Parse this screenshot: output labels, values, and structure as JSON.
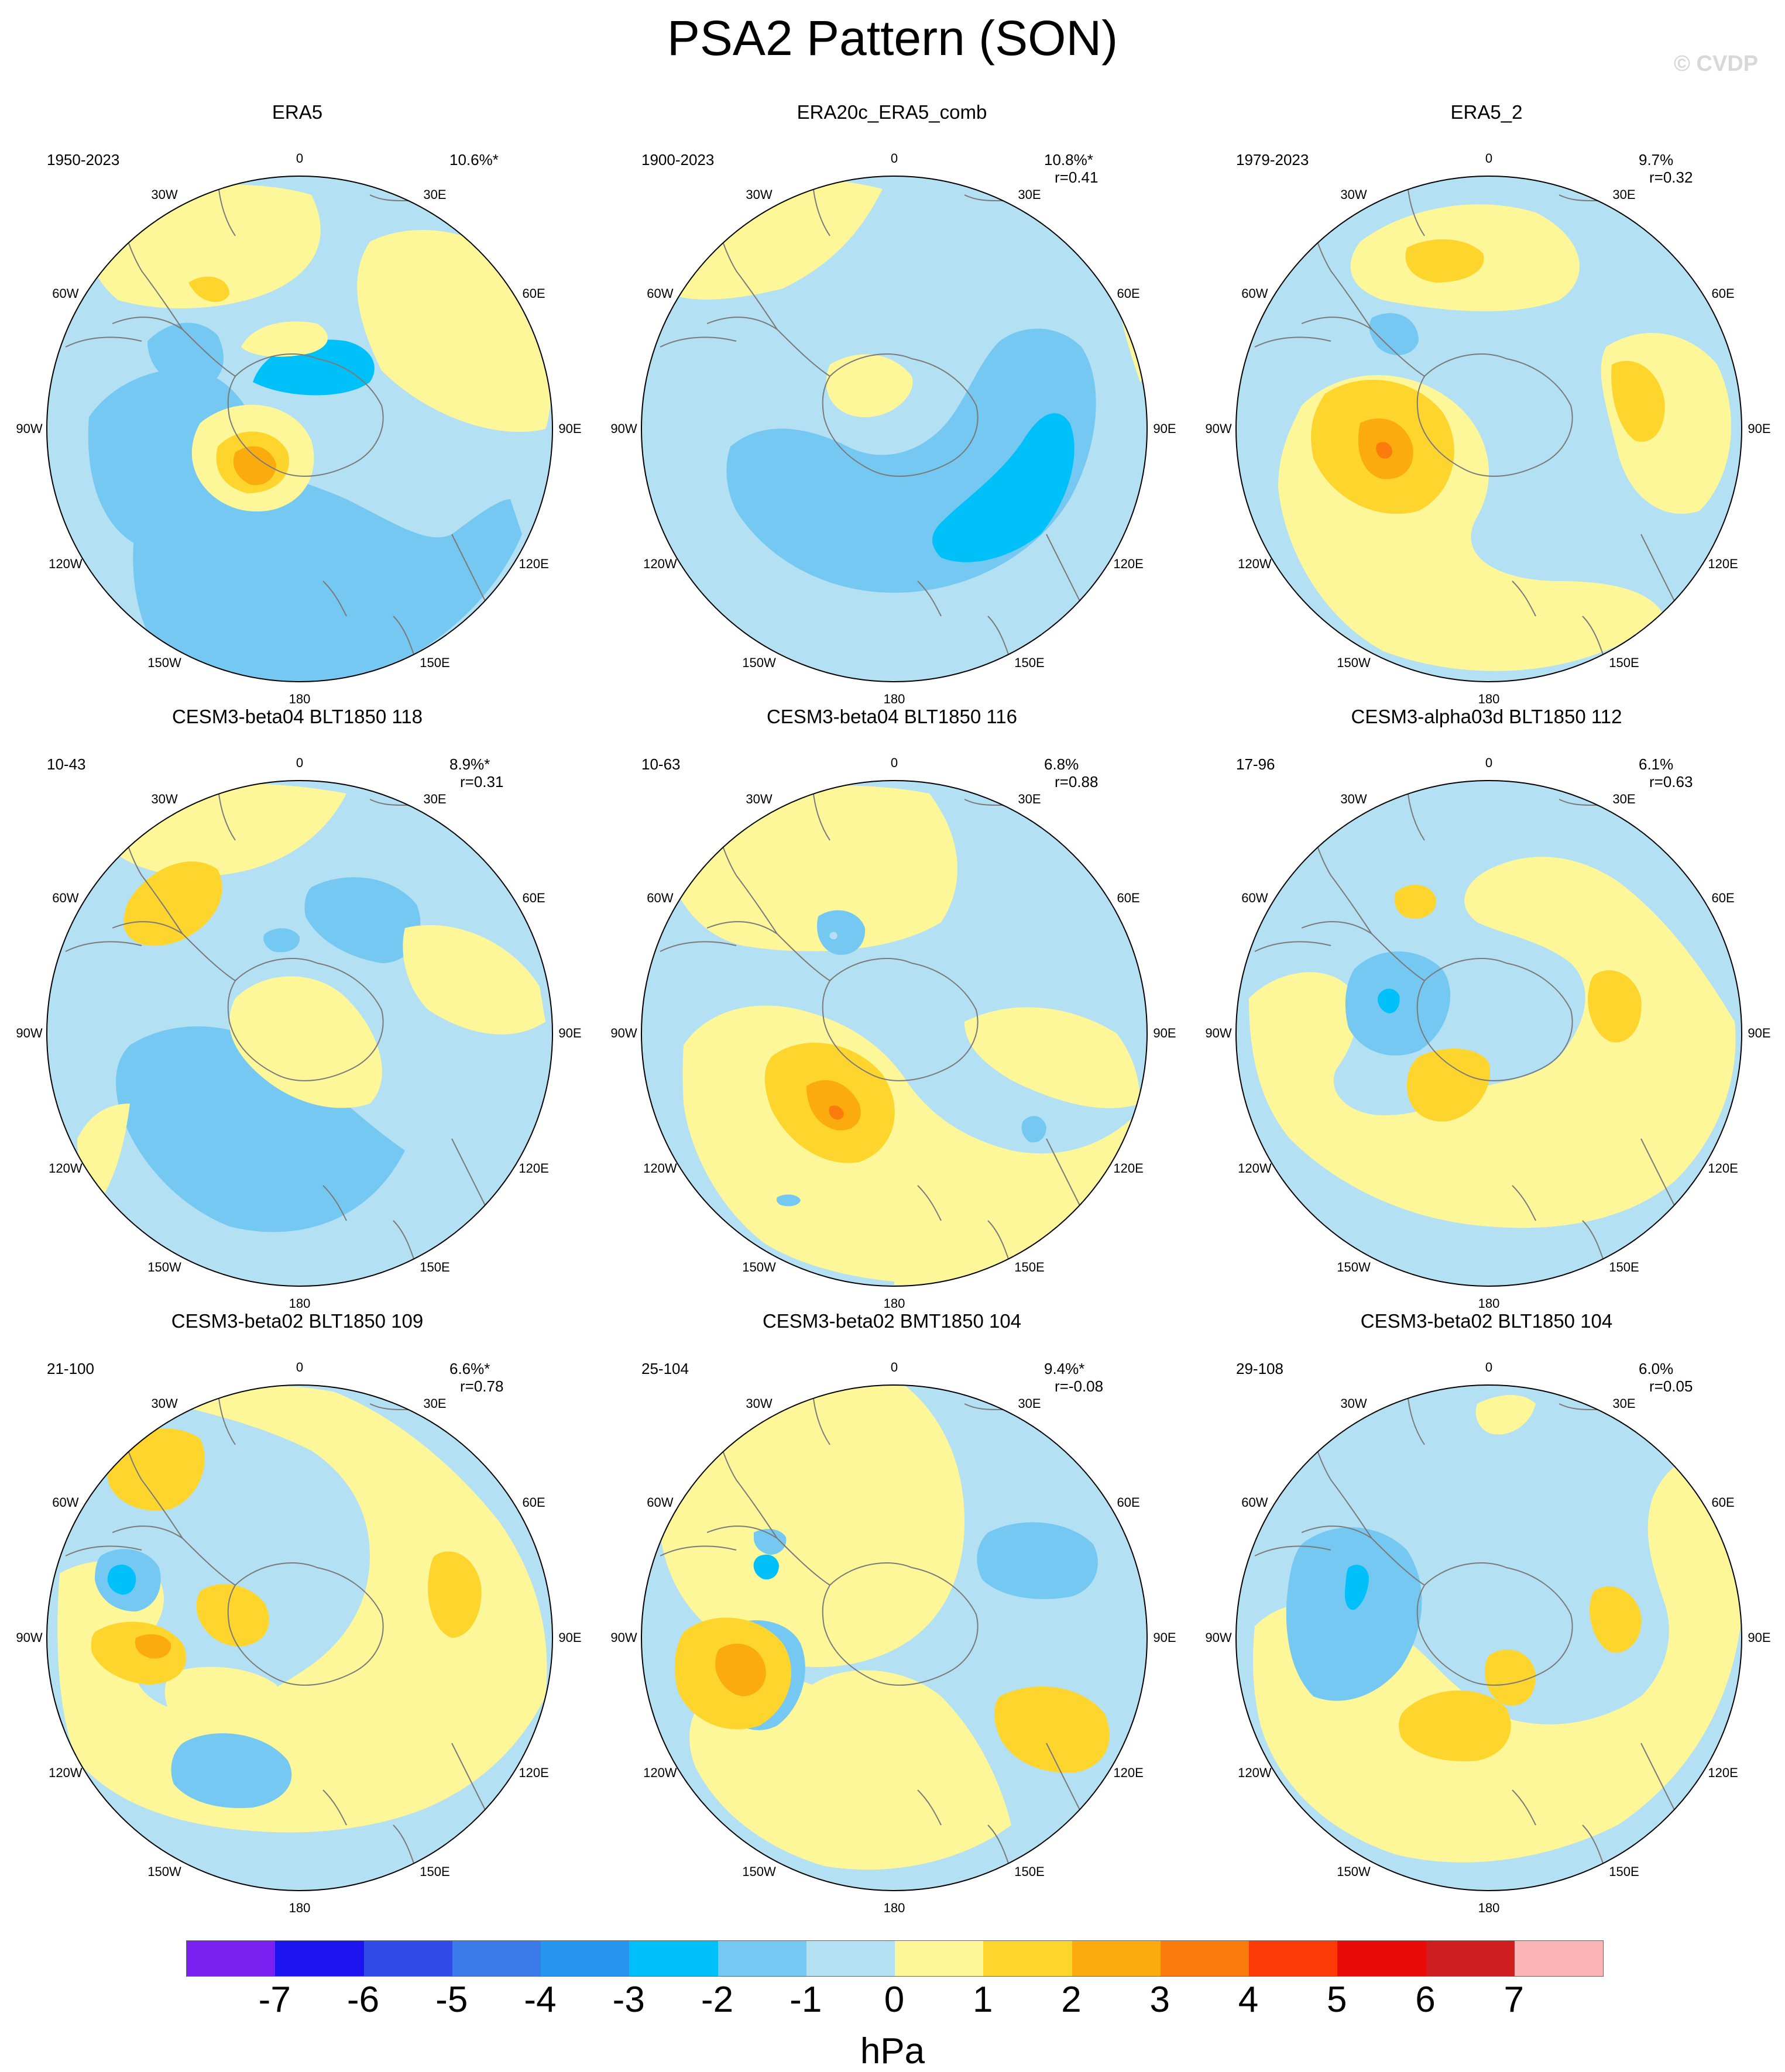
{
  "title": "PSA2 Pattern (SON)",
  "watermark": "© CVDP",
  "longitude_labels": [
    "0",
    "30E",
    "60E",
    "90E",
    "120E",
    "150E",
    "180",
    "150W",
    "120W",
    "90W",
    "60W",
    "30W"
  ],
  "panels": [
    {
      "title": "ERA5",
      "years": "1950-2023",
      "pct": "10.6%*",
      "r": ""
    },
    {
      "title": "ERA20c_ERA5_comb",
      "years": "1900-2023",
      "pct": "10.8%*",
      "r": "r=0.41"
    },
    {
      "title": "ERA5_2",
      "years": "1979-2023",
      "pct": "9.7%",
      "r": "r=0.32"
    },
    {
      "title": "CESM3-beta04 BLT1850 118",
      "years": "10-43",
      "pct": "8.9%*",
      "r": "r=0.31"
    },
    {
      "title": "CESM3-beta04 BLT1850 116",
      "years": "10-63",
      "pct": "6.8%",
      "r": "r=0.88"
    },
    {
      "title": "CESM3-alpha03d BLT1850 112",
      "years": "17-96",
      "pct": "6.1%",
      "r": "r=0.63"
    },
    {
      "title": "CESM3-beta02 BLT1850 109",
      "years": "21-100",
      "pct": "6.6%*",
      "r": "r=0.78"
    },
    {
      "title": "CESM3-beta02 BMT1850 104",
      "years": "25-104",
      "pct": "9.4%*",
      "r": "r=-0.08"
    },
    {
      "title": "CESM3-beta02 BLT1850 104",
      "years": "29-108",
      "pct": "6.0%",
      "r": "r=0.05"
    }
  ],
  "colorbar": {
    "unit": "hPa",
    "ticks": [
      "-7",
      "-6",
      "-5",
      "-4",
      "-3",
      "-2",
      "-1",
      "0",
      "1",
      "2",
      "3",
      "4",
      "5",
      "6",
      "7"
    ],
    "colors": [
      "#7a21f2",
      "#1c14ef",
      "#2f4be8",
      "#3a7ae9",
      "#2896ef",
      "#00c0fa",
      "#74c8f2",
      "#b4e0f4",
      "#fdf79a",
      "#fdd52d",
      "#fcab0f",
      "#fb7b0d",
      "#fc3a06",
      "#e80a06",
      "#cf1d20",
      "#fbb5b7"
    ]
  }
}
